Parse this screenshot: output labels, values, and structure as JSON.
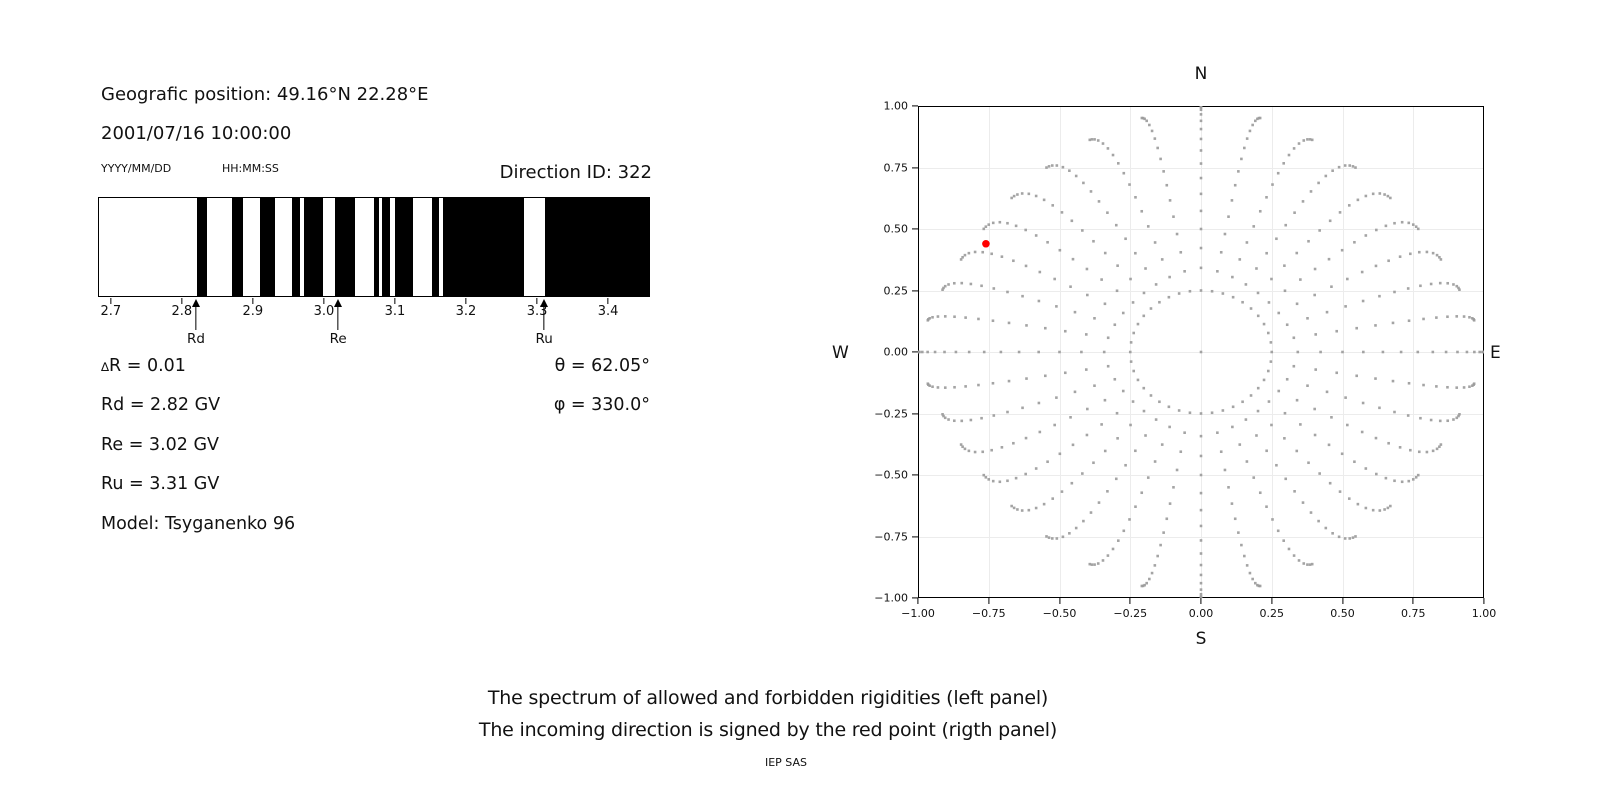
{
  "header": {
    "position": "Geografic position: 49.16°N 22.28°E",
    "datetime": "2001/07/16 10:00:00",
    "date_format": "YYYY/MM/DD",
    "time_format": "HH:MM:SS",
    "direction_id": "Direction ID: 322"
  },
  "spectrum": {
    "xmin": 2.682,
    "xmax": 3.459,
    "unit": "GV",
    "ticks": [
      {
        "v": 2.7,
        "label": "2.7"
      },
      {
        "v": 2.8,
        "label": "2.8"
      },
      {
        "v": 2.9,
        "label": "2.9"
      },
      {
        "v": 3.0,
        "label": "3.0"
      },
      {
        "v": 3.1,
        "label": "3.1"
      },
      {
        "v": 3.2,
        "label": "3.2"
      },
      {
        "v": 3.3,
        "label": "3.3"
      },
      {
        "v": 3.4,
        "label": "3.4"
      }
    ],
    "allowed_intervals_gv": [
      [
        2.82,
        2.835
      ],
      [
        2.87,
        2.885
      ],
      [
        2.91,
        2.93
      ],
      [
        2.955,
        2.966
      ],
      [
        2.971,
        2.999
      ],
      [
        3.015,
        3.043
      ],
      [
        3.07,
        3.078
      ],
      [
        3.082,
        3.093
      ],
      [
        3.1,
        3.125
      ],
      [
        3.152,
        3.162
      ],
      [
        3.168,
        3.282
      ],
      [
        3.312,
        3.459
      ]
    ],
    "markers": [
      {
        "label": "Rd",
        "value": 2.82
      },
      {
        "label": "Re",
        "value": 3.02
      },
      {
        "label": "Ru",
        "value": 3.31
      }
    ],
    "bar_color": "#000000"
  },
  "info": {
    "delta_symbol": "∆",
    "delta_rest": "R = 0.01",
    "rd": "Rd = 2.82 GV",
    "re": "Re = 3.02 GV",
    "ru": "Ru = 3.31 GV",
    "model": "Model: Tsyganenko 96",
    "theta": "θ = 62.05°",
    "phi": "φ = 330.0°"
  },
  "chart_data": {
    "type": "scatter",
    "title": "N",
    "xlabel": "S",
    "left_label": "W",
    "right_label": "E",
    "xlim": [
      -1.0,
      1.0
    ],
    "ylim": [
      -1.0,
      1.0
    ],
    "grid": true,
    "axis_ticks": [
      {
        "v": -1.0,
        "label": "−1.00"
      },
      {
        "v": -0.75,
        "label": "−0.75"
      },
      {
        "v": -0.5,
        "label": "−0.50"
      },
      {
        "v": -0.25,
        "label": "−0.25"
      },
      {
        "v": 0.0,
        "label": "0.00"
      },
      {
        "v": 0.25,
        "label": "0.25"
      },
      {
        "v": 0.5,
        "label": "0.50"
      },
      {
        "v": 0.75,
        "label": "0.75"
      },
      {
        "v": 1.0,
        "label": "1.00"
      }
    ],
    "rays": {
      "azimuth_start_deg": 0,
      "azimuth_step_deg": 10,
      "azimuth_count": 36,
      "zenith_deg": [
        20,
        25,
        30,
        35,
        40,
        45,
        50,
        55,
        60,
        65,
        70,
        75,
        80,
        84,
        87,
        89.5
      ],
      "radius_rule": "sin(zenith) scaled by per-azimuth max radius",
      "max_radius_cardinal": 1.0,
      "max_radius_diagonal": 0.915,
      "tip_bend_deg": 7
    },
    "inner_ring": {
      "radius": 0.25,
      "n_dots": 40
    },
    "center_dot": {
      "x": 0.0,
      "y": 0.0
    },
    "red_point": {
      "x": -0.76,
      "y": 0.44
    },
    "dot_color": "#9a9a9a",
    "red_color": "#ff0000",
    "grid_color": "#ececec"
  },
  "caption": {
    "line1": "The spectrum of allowed and forbidden rigidities (left panel)",
    "line2": "The incoming direction is signed by the red point (rigth panel)",
    "credit": "IEP SAS"
  }
}
